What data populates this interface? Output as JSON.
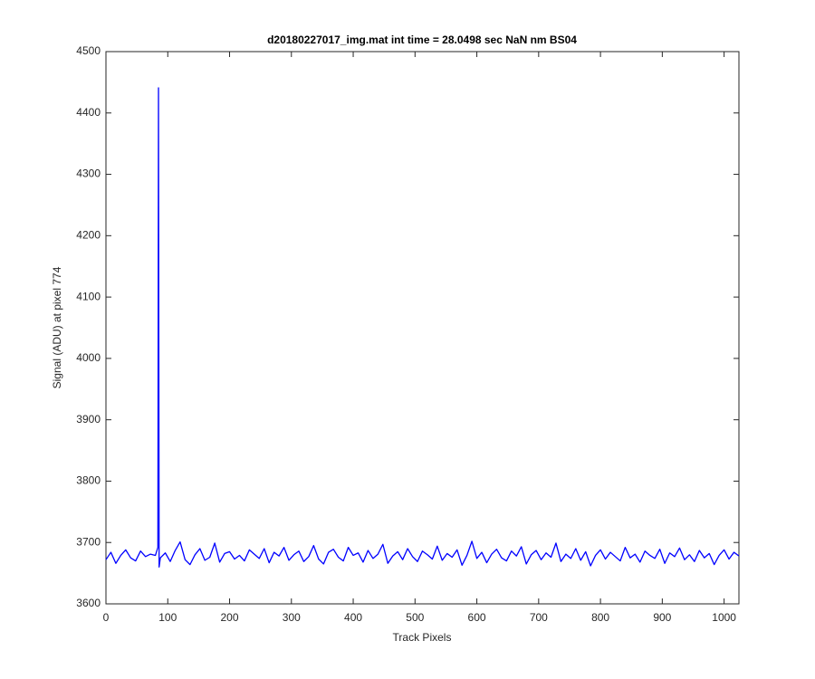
{
  "chart_data": {
    "type": "line",
    "title": "d20180227017_img.mat int time = 28.0498 sec  NaN nm BS04",
    "xlabel": "Track Pixels",
    "ylabel": "Signal (ADU) at pixel 774",
    "color": "#0000ff",
    "xlim": [
      0,
      1024
    ],
    "ylim": [
      3600,
      4500
    ],
    "xticks": [
      0,
      100,
      200,
      300,
      400,
      500,
      600,
      700,
      800,
      900,
      1000
    ],
    "yticks": [
      3600,
      3700,
      3800,
      3900,
      4000,
      4100,
      4200,
      4300,
      4400,
      4500
    ],
    "grid": false,
    "x": [
      0,
      8,
      16,
      24,
      32,
      40,
      48,
      56,
      64,
      72,
      80,
      84,
      85,
      86,
      88,
      96,
      104,
      112,
      120,
      128,
      136,
      144,
      152,
      160,
      168,
      176,
      184,
      192,
      200,
      208,
      216,
      224,
      232,
      240,
      248,
      256,
      264,
      272,
      280,
      288,
      296,
      304,
      312,
      320,
      328,
      336,
      344,
      352,
      360,
      368,
      376,
      384,
      392,
      400,
      408,
      416,
      424,
      432,
      440,
      448,
      456,
      464,
      472,
      480,
      488,
      496,
      504,
      512,
      520,
      528,
      536,
      544,
      552,
      560,
      568,
      576,
      584,
      592,
      600,
      608,
      616,
      624,
      632,
      640,
      648,
      656,
      664,
      672,
      680,
      688,
      696,
      704,
      712,
      720,
      728,
      736,
      744,
      752,
      760,
      768,
      776,
      784,
      792,
      800,
      808,
      816,
      824,
      832,
      840,
      848,
      856,
      864,
      872,
      880,
      888,
      896,
      904,
      912,
      920,
      928,
      936,
      944,
      952,
      960,
      968,
      976,
      984,
      992,
      1000,
      1008,
      1016,
      1024
    ],
    "values": [
      3672,
      3684,
      3666,
      3679,
      3688,
      3675,
      3670,
      3686,
      3677,
      3681,
      3679,
      3692,
      4441,
      3660,
      3675,
      3683,
      3669,
      3687,
      3701,
      3672,
      3664,
      3680,
      3690,
      3671,
      3676,
      3699,
      3668,
      3682,
      3685,
      3673,
      3679,
      3670,
      3688,
      3681,
      3674,
      3690,
      3667,
      3684,
      3678,
      3692,
      3671,
      3680,
      3686,
      3669,
      3677,
      3695,
      3673,
      3665,
      3684,
      3689,
      3676,
      3670,
      3692,
      3679,
      3683,
      3668,
      3687,
      3674,
      3681,
      3697,
      3666,
      3678,
      3685,
      3672,
      3690,
      3677,
      3669,
      3686,
      3680,
      3673,
      3694,
      3671,
      3682,
      3676,
      3688,
      3663,
      3679,
      3702,
      3674,
      3684,
      3667,
      3681,
      3689,
      3675,
      3670,
      3686,
      3678,
      3693,
      3665,
      3680,
      3687,
      3672,
      3683,
      3676,
      3699,
      3669,
      3681,
      3674,
      3690,
      3671,
      3685,
      3662,
      3679,
      3688,
      3673,
      3684,
      3677,
      3670,
      3692,
      3675,
      3681,
      3668,
      3686,
      3679,
      3674,
      3689,
      3666,
      3683,
      3677,
      3691,
      3672,
      3680,
      3669,
      3687,
      3675,
      3682,
      3664,
      3679,
      3688,
      3673,
      3684,
      3678
    ]
  }
}
